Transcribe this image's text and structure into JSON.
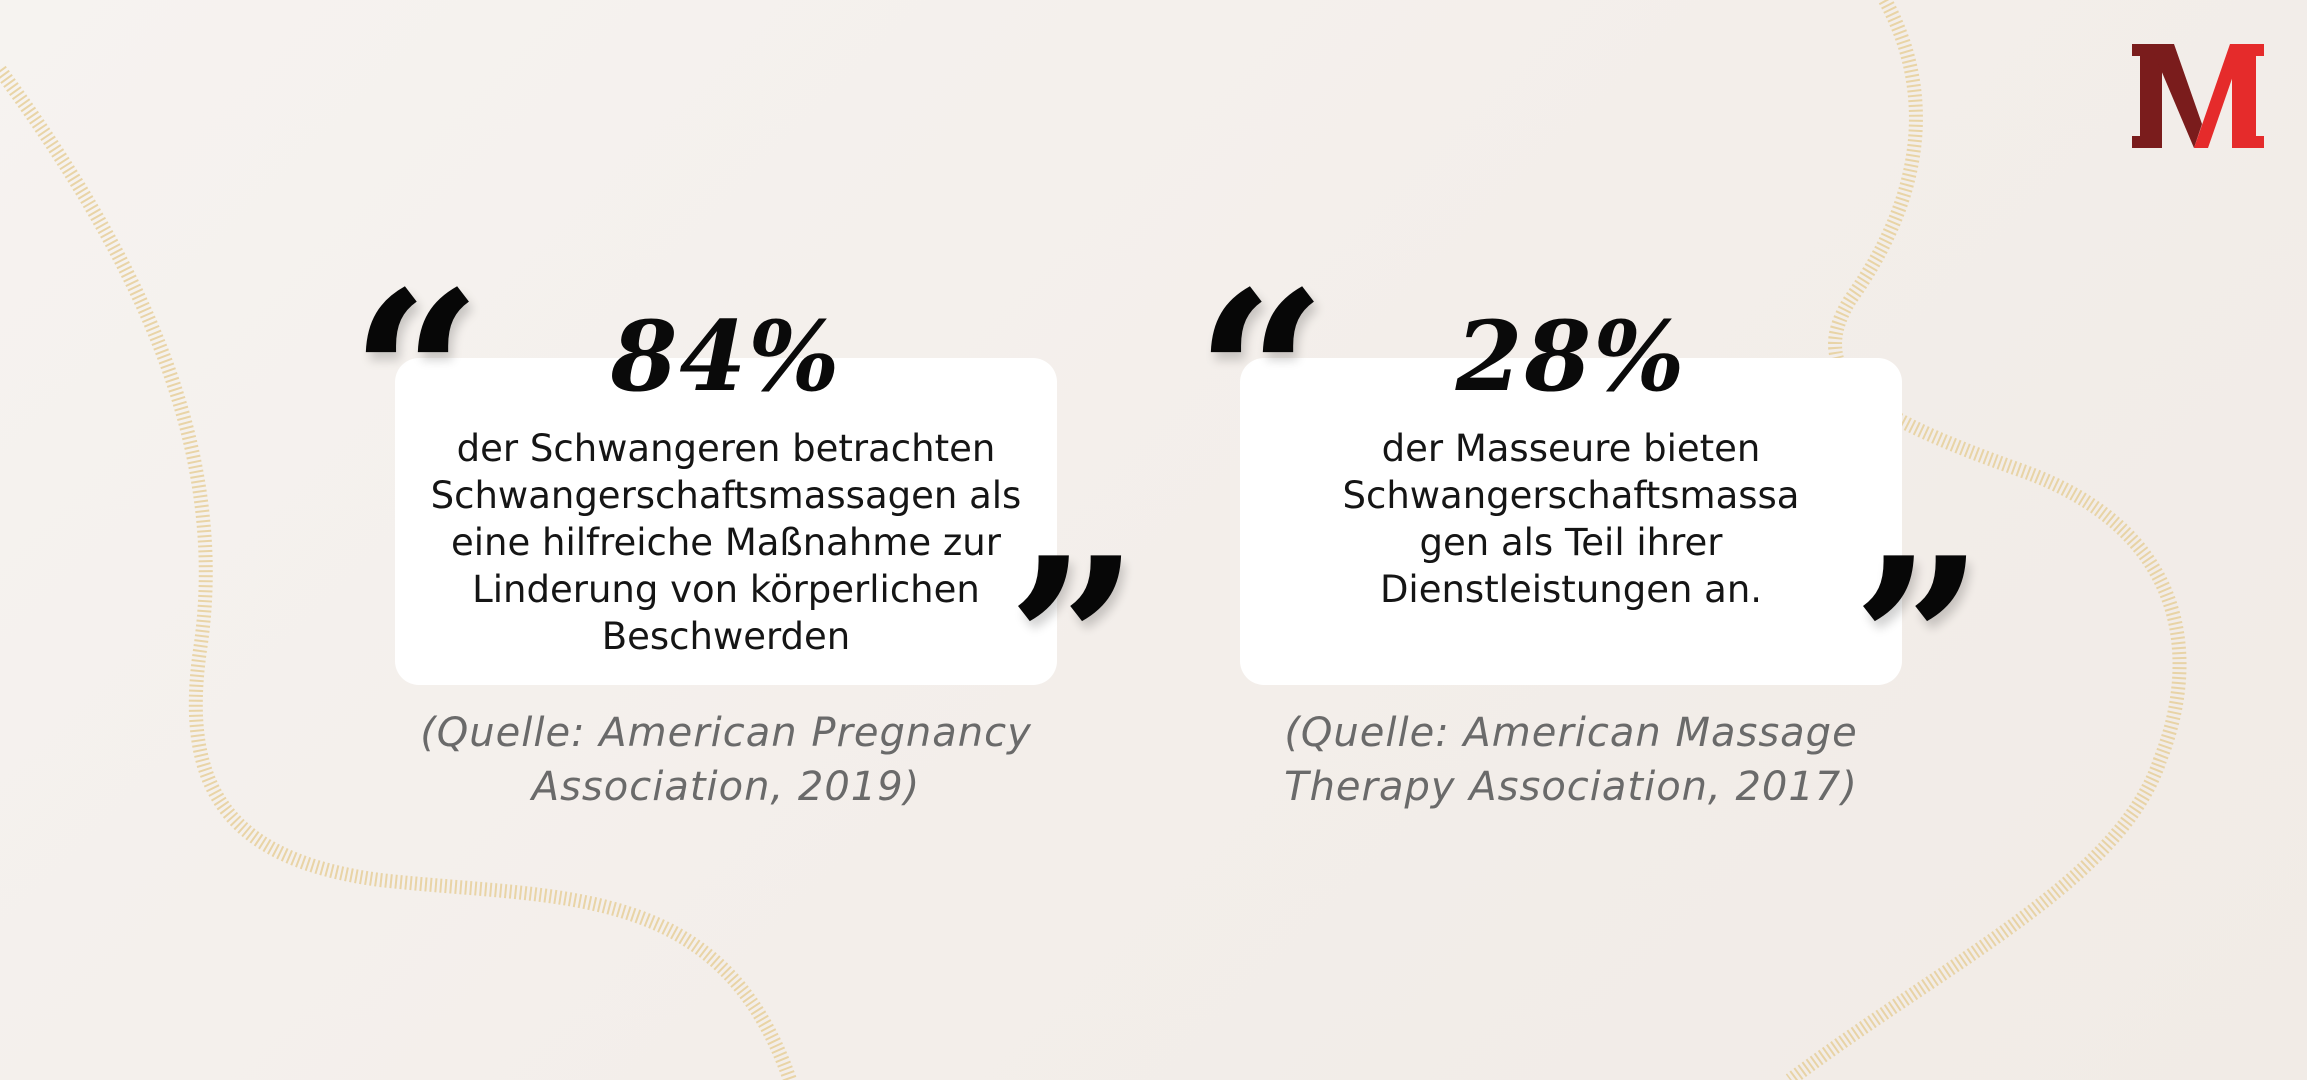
{
  "logo": {
    "letter": "M",
    "colors": {
      "dark": "#7a1c1c",
      "bright": "#e52b2b"
    }
  },
  "stats": [
    {
      "value": "84%",
      "description": "der Schwangeren betrachten Schwangerschaftsmassagen als eine hilfreiche Maßnahme zur Linderung von körperlichen Beschwerden",
      "lines": [
        "der Schwangeren betrachten",
        "Schwangerschaftsmassagen als",
        "eine hilfreiche Maßnahme zur",
        "Linderung von körperlichen",
        "Beschwerden"
      ],
      "source": "(Quelle: American Pregnancy Association, 2019)",
      "source_lines": [
        "(Quelle: American Pregnancy",
        "Association, 2019)"
      ]
    },
    {
      "value": "28%",
      "description": "der Masseure bieten Schwangerschaftsmassagen als Teil ihrer Dienstleistungen an.",
      "lines": [
        "der Masseure bieten",
        "Schwangerschaftsmassa",
        "gen als Teil ihrer",
        "Dienstleistungen an."
      ],
      "source": "(Quelle: American Massage Therapy Association, 2017)",
      "source_lines": [
        "(Quelle: American Massage",
        "Therapy Association, 2017)"
      ]
    }
  ],
  "quote_marks": {
    "open": "“",
    "close": "”"
  },
  "colors": {
    "background": "#f4efeb",
    "card": "#ffffff",
    "accent_gold": "#e6cf9a",
    "text": "#151515",
    "source_text": "#6a6a6a"
  }
}
